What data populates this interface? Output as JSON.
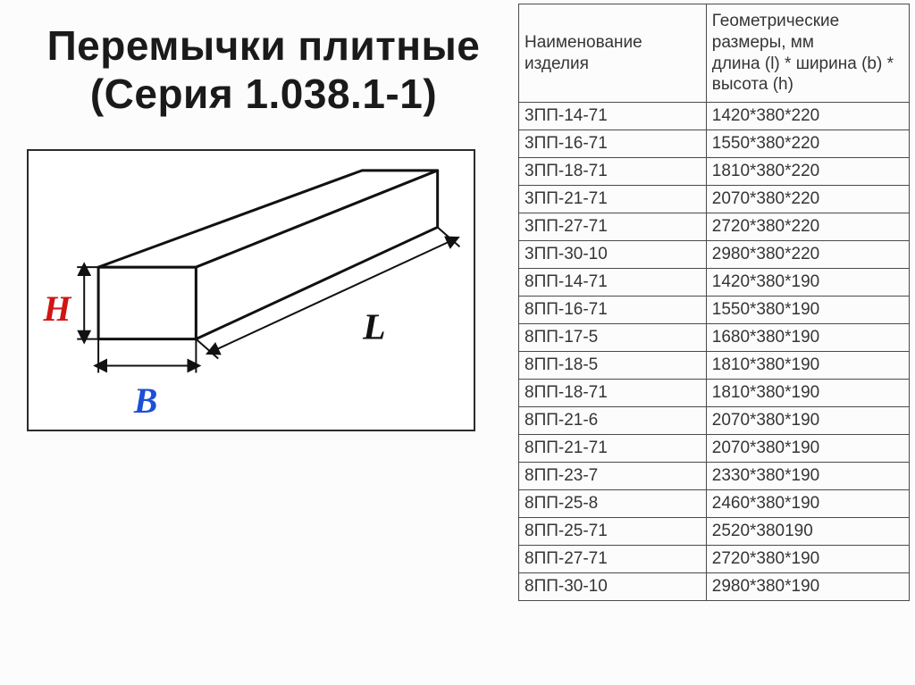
{
  "title_line1": "Перемычки плитные",
  "title_line2": "(Серия 1.038.1-1)",
  "diagram": {
    "label_H": "H",
    "label_B": "B",
    "label_L": "L",
    "color_H": "#d11515",
    "color_B": "#1c4fd6",
    "color_L": "#111111",
    "stroke": "#111111",
    "fill": "#ffffff",
    "font_size": 38,
    "font_weight": "700"
  },
  "table": {
    "headers": {
      "name": "Наименование изделия",
      "dims": "Геометрические размеры, мм\nдлина (l) * ширина (b) * высота (h)"
    },
    "rows": [
      {
        "name": "3ПП-14-71",
        "dims": "1420*380*220"
      },
      {
        "name": "3ПП-16-71",
        "dims": "1550*380*220"
      },
      {
        "name": "3ПП-18-71",
        "dims": "1810*380*220"
      },
      {
        "name": "3ПП-21-71",
        "dims": "2070*380*220"
      },
      {
        "name": "3ПП-27-71",
        "dims": "2720*380*220"
      },
      {
        "name": "3ПП-30-10",
        "dims": "2980*380*220"
      },
      {
        "name": "8ПП-14-71",
        "dims": "1420*380*190"
      },
      {
        "name": "8ПП-16-71",
        "dims": "1550*380*190"
      },
      {
        "name": "8ПП-17-5",
        "dims": "1680*380*190"
      },
      {
        "name": "8ПП-18-5",
        "dims": "1810*380*190"
      },
      {
        "name": "8ПП-18-71",
        "dims": "1810*380*190"
      },
      {
        "name": "8ПП-21-6",
        "dims": "2070*380*190"
      },
      {
        "name": "8ПП-21-71",
        "dims": "2070*380*190"
      },
      {
        "name": "8ПП-23-7",
        "dims": "2330*380*190"
      },
      {
        "name": "8ПП-25-8",
        "dims": "2460*380*190"
      },
      {
        "name": "8ПП-25-71",
        "dims": "2520*380190"
      },
      {
        "name": "8ПП-27-71",
        "dims": "2720*380*190"
      },
      {
        "name": "8ПП-30-10",
        "dims": "2980*380*190"
      }
    ]
  }
}
